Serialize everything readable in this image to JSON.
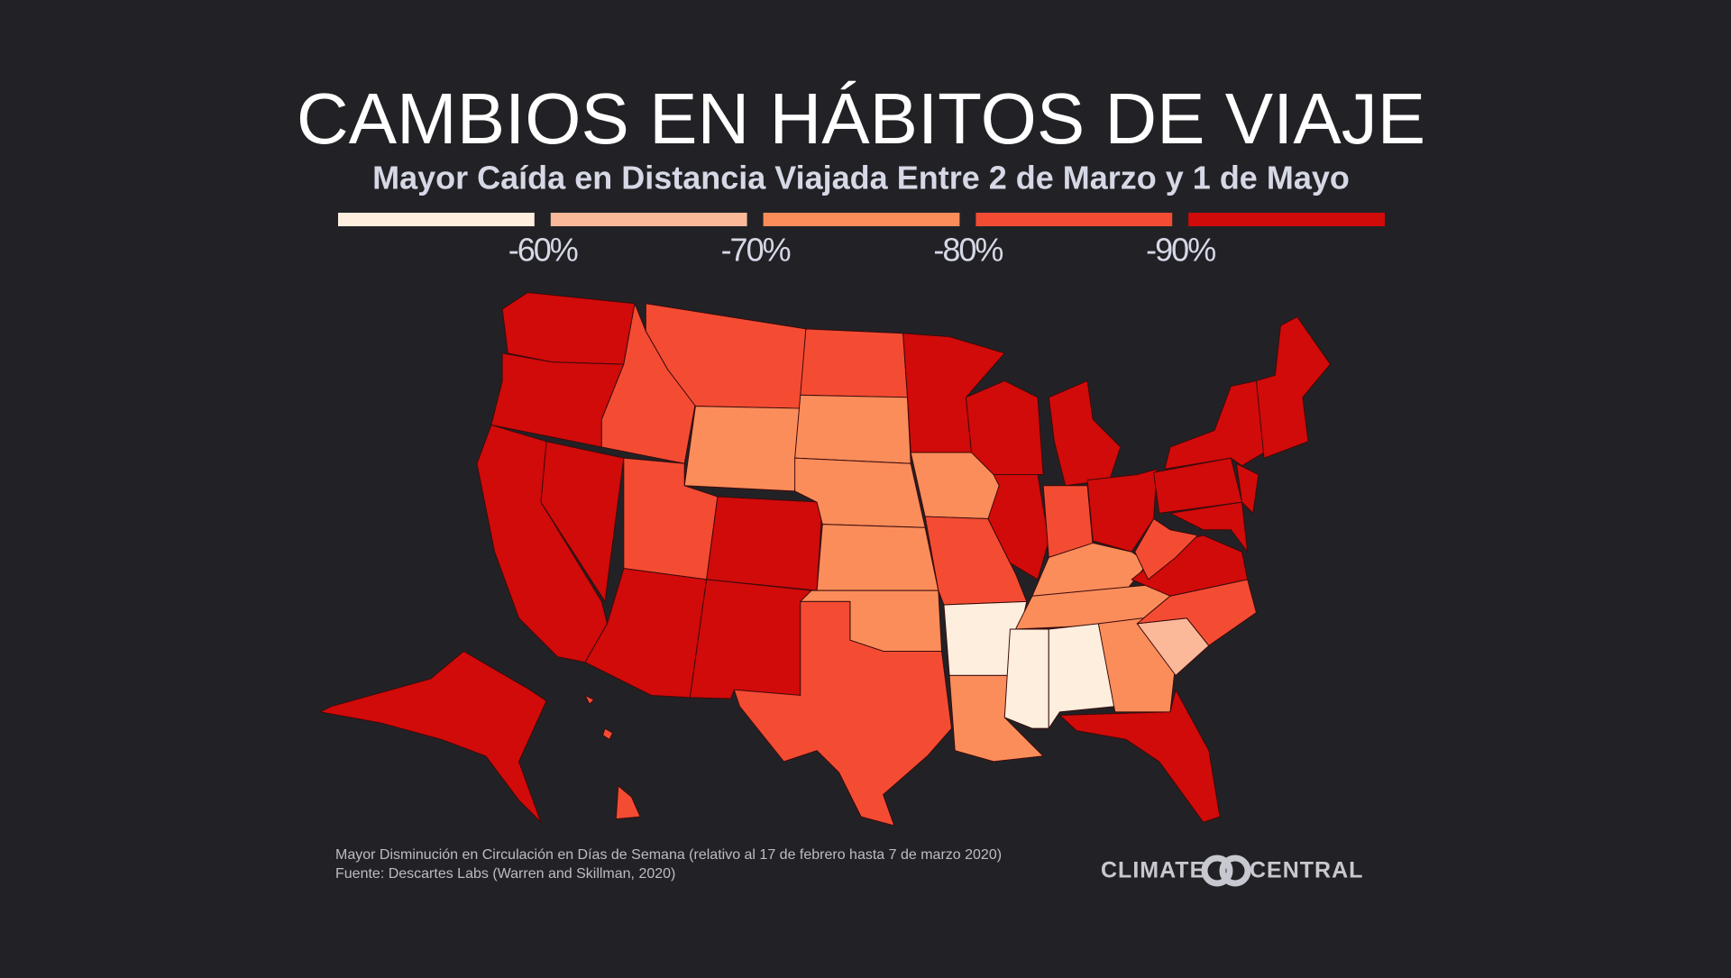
{
  "title": "CAMBIOS EN HÁBITOS DE VIAJE",
  "subtitle": "Mayor Caída en Distancia Viajada Entre 2 de Marzo y 1 de Mayo",
  "legend": {
    "colors": [
      "#fdeedd",
      "#fcb99a",
      "#fb8d5b",
      "#f44c33",
      "#d10a0a"
    ],
    "ticks": [
      {
        "value": -60,
        "label": "-60%"
      },
      {
        "value": -70,
        "label": "-70%"
      },
      {
        "value": -80,
        "label": "-80%"
      },
      {
        "value": -90,
        "label": "-90%"
      }
    ]
  },
  "footnote": [
    "Mayor Disminución en Circulación en Días de Semana (relativo al 17 de febrero hasta 7 de marzo 2020)",
    "Fuente: Descartes Labs (Warren and Skillman, 2020)"
  ],
  "logo": {
    "left": "CLIMATE",
    "right": "CENTRAL"
  }
}
